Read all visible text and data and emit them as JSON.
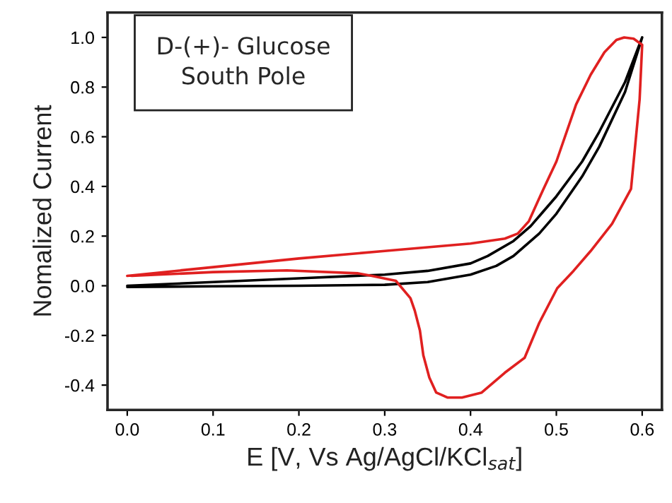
{
  "chart_data": {
    "type": "line",
    "xlabel": "E [V, Vs Ag/AgCl/KCl$_{sat}$]",
    "ylabel": "Nomalized Current",
    "annotations": [
      "D-(+)- Glucose\nSouth Pole"
    ],
    "series": [
      {
        "color": "#000000",
        "x": [
          0.0,
          0.1,
          0.2,
          0.3,
          0.35,
          0.4,
          0.43,
          0.45,
          0.48,
          0.5,
          0.53,
          0.55,
          0.58,
          0.6,
          0.58,
          0.55,
          0.53,
          0.5,
          0.47,
          0.45,
          0.42,
          0.4,
          0.35,
          0.3,
          0.2,
          0.1,
          0.0
        ],
        "values": [
          -0.005,
          -0.002,
          0.0,
          0.004,
          0.015,
          0.045,
          0.08,
          0.12,
          0.21,
          0.29,
          0.44,
          0.56,
          0.78,
          1.0,
          0.82,
          0.62,
          0.5,
          0.36,
          0.24,
          0.18,
          0.12,
          0.09,
          0.06,
          0.045,
          0.03,
          0.015,
          0.0
        ]
      },
      {
        "color": "#e02020",
        "x": [
          0.0,
          0.1,
          0.2,
          0.3,
          0.4,
          0.44,
          0.455,
          0.468,
          0.485,
          0.5,
          0.523,
          0.54,
          0.556,
          0.57,
          0.579,
          0.59,
          0.6,
          0.597,
          0.587,
          0.565,
          0.54,
          0.52,
          0.501,
          0.48,
          0.463,
          0.44,
          0.413,
          0.39,
          0.373,
          0.36,
          0.352,
          0.345,
          0.341,
          0.335,
          0.33,
          0.313,
          0.285,
          0.269,
          0.186,
          0.1,
          0.005
        ],
        "values": [
          0.04,
          0.075,
          0.11,
          0.14,
          0.17,
          0.19,
          0.21,
          0.26,
          0.39,
          0.5,
          0.73,
          0.85,
          0.94,
          0.99,
          1.0,
          0.995,
          0.97,
          0.75,
          0.39,
          0.25,
          0.14,
          0.06,
          -0.01,
          -0.15,
          -0.29,
          -0.35,
          -0.43,
          -0.45,
          -0.45,
          -0.43,
          -0.37,
          -0.28,
          -0.18,
          -0.1,
          -0.05,
          0.02,
          0.04,
          0.05,
          0.062,
          0.055,
          0.04
        ]
      }
    ],
    "xlim": [
      -0.023,
      0.623
    ],
    "ylim": [
      -0.5,
      1.1
    ],
    "xticks": [
      {
        "value": 0.0,
        "label": "0.0"
      },
      0.1,
      0.2,
      0.3,
      0.4,
      0.5,
      0.6
    ],
    "yticks": [
      -0.4,
      -0.2,
      {
        "value": 0.0,
        "label": "0.0"
      },
      0.2,
      0.4,
      0.6,
      0.8,
      {
        "value": 1.0,
        "label": "1.0"
      }
    ]
  }
}
